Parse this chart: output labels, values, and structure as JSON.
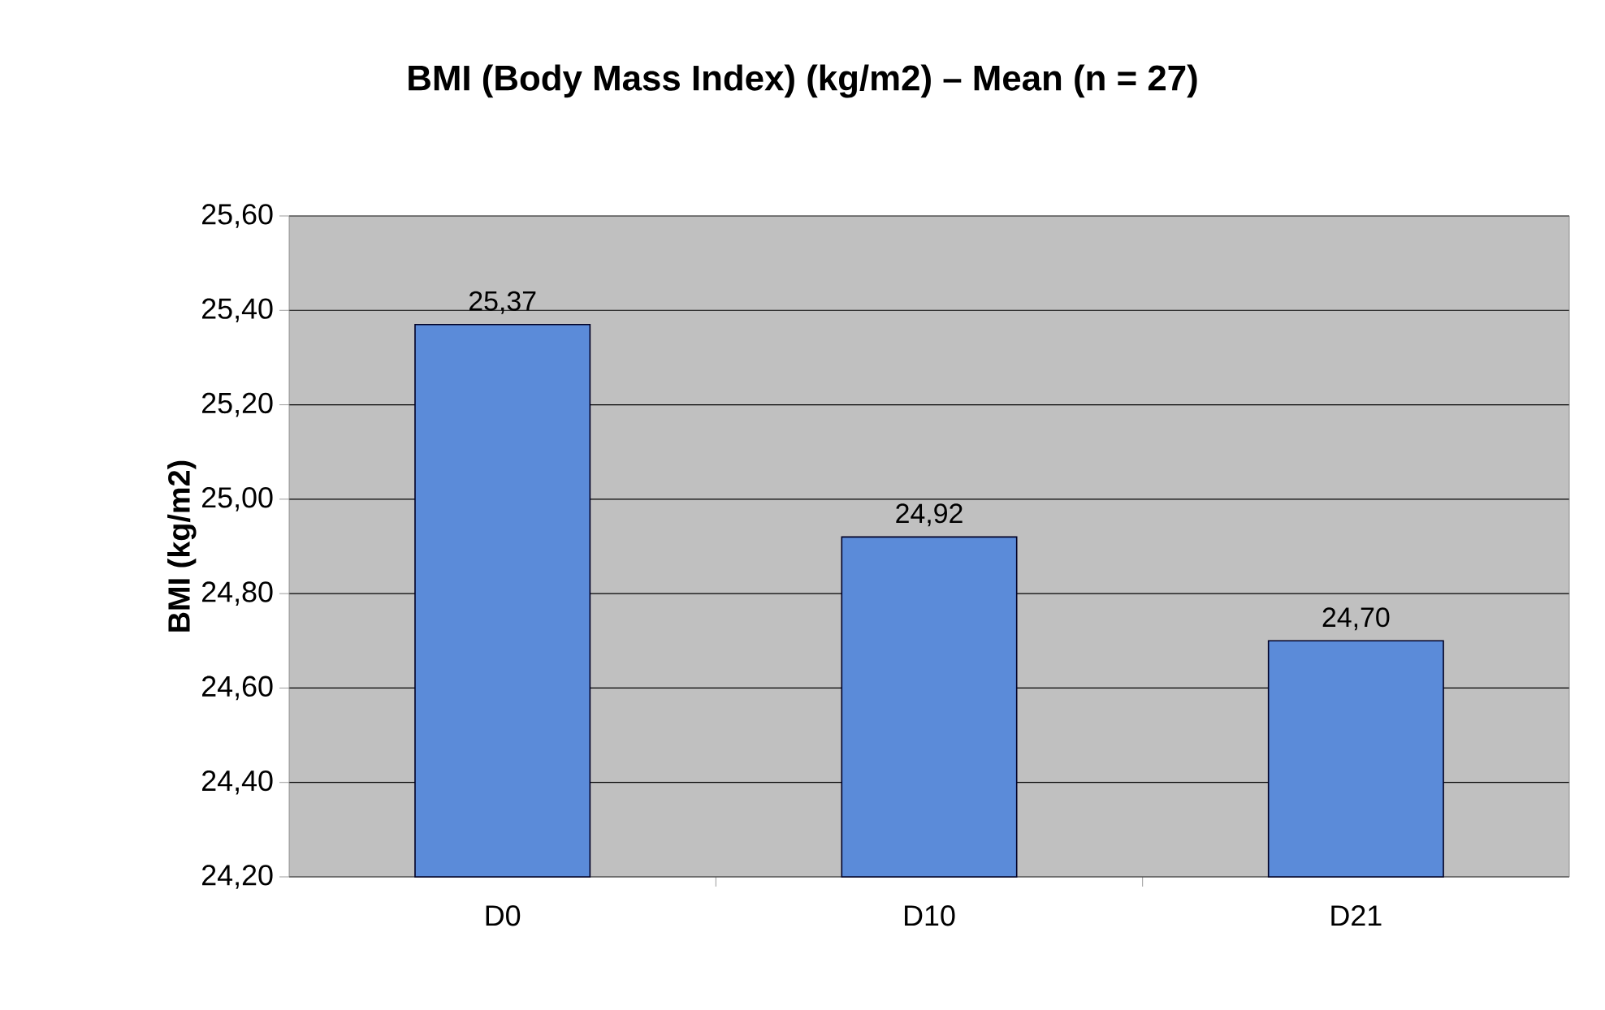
{
  "chart_data": {
    "type": "bar",
    "title": "BMI (Body Mass Index) (kg/m2) – Mean (n = 27)",
    "ylabel": "BMI (kg/m2)",
    "categories": [
      "D0",
      "D10",
      "D21"
    ],
    "values": [
      25.37,
      24.92,
      24.7
    ],
    "value_labels": [
      "25,37",
      "24,92",
      "24,70"
    ],
    "color": "#5b8bd9",
    "ylim": [
      24.2,
      25.6
    ],
    "yticks": [
      {
        "value": 24.2,
        "label": "24,20"
      },
      {
        "value": 24.4,
        "label": "24,40"
      },
      {
        "value": 24.6,
        "label": "24,60"
      },
      {
        "value": 24.8,
        "label": "24,80"
      },
      {
        "value": 25.0,
        "label": "25,00"
      },
      {
        "value": 25.2,
        "label": "25,20"
      },
      {
        "value": 25.4,
        "label": "25,40"
      },
      {
        "value": 25.6,
        "label": "25,60"
      }
    ],
    "grid": "y"
  }
}
